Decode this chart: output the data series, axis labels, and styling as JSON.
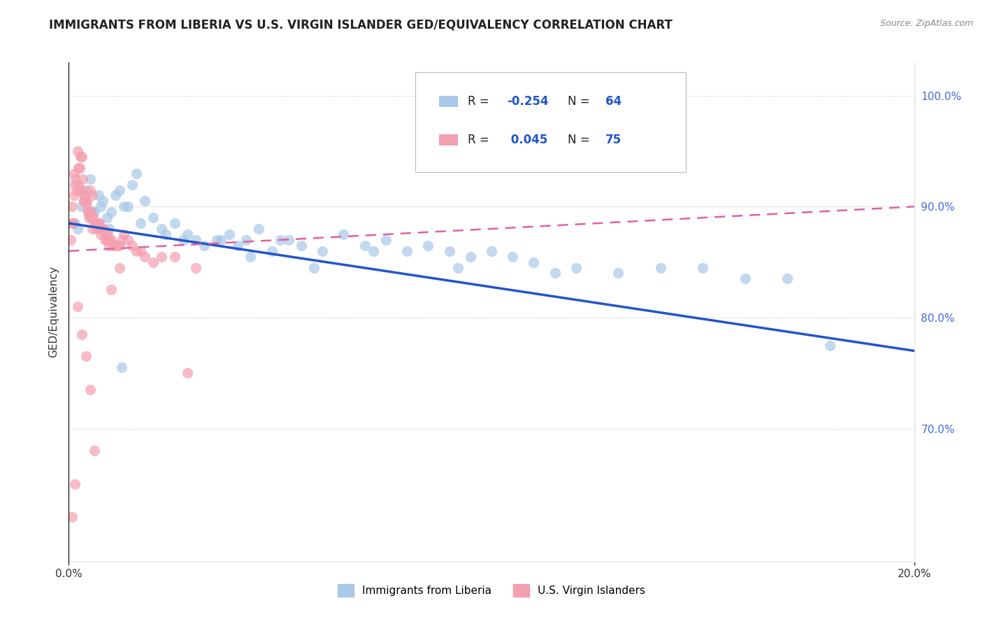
{
  "title": "IMMIGRANTS FROM LIBERIA VS U.S. VIRGIN ISLANDER GED/EQUIVALENCY CORRELATION CHART",
  "source": "Source: ZipAtlas.com",
  "ylabel": "GED/Equivalency",
  "xlim": [
    0.0,
    20.0
  ],
  "ylim": [
    58.0,
    103.0
  ],
  "yticks": [
    70.0,
    80.0,
    90.0,
    100.0
  ],
  "ytick_labels": [
    "70.0%",
    "80.0%",
    "90.0%",
    "100.0%"
  ],
  "color_blue": "#a8c8e8",
  "color_pink": "#f4a0b0",
  "trendline_blue": "#2255cc",
  "trendline_pink": "#e060a0",
  "background_color": "#ffffff",
  "blue_trend_x0": 0.0,
  "blue_trend_y0": 88.5,
  "blue_trend_x1": 20.0,
  "blue_trend_y1": 77.0,
  "pink_trend_x0": 0.0,
  "pink_trend_y0": 86.0,
  "pink_trend_x1": 20.0,
  "pink_trend_y1": 90.0,
  "blue_x": [
    0.2,
    0.4,
    0.5,
    0.7,
    0.8,
    1.0,
    1.2,
    1.4,
    1.5,
    1.6,
    1.8,
    2.0,
    2.2,
    2.5,
    2.8,
    3.0,
    3.5,
    3.8,
    4.0,
    4.2,
    4.5,
    4.8,
    5.0,
    5.2,
    5.5,
    6.0,
    6.5,
    7.0,
    7.5,
    8.0,
    8.5,
    9.0,
    9.5,
    10.0,
    10.5,
    11.0,
    12.0,
    13.0,
    14.0,
    15.0,
    16.0,
    17.0,
    18.0,
    0.3,
    0.6,
    0.9,
    1.1,
    1.3,
    1.7,
    2.3,
    2.7,
    3.2,
    3.6,
    4.3,
    5.8,
    7.2,
    9.2,
    11.5,
    0.15,
    0.35,
    0.55,
    0.75,
    0.95,
    1.25
  ],
  "blue_y": [
    88.0,
    91.5,
    92.5,
    91.0,
    90.5,
    89.5,
    91.5,
    90.0,
    92.0,
    93.0,
    90.5,
    89.0,
    88.0,
    88.5,
    87.5,
    87.0,
    87.0,
    87.5,
    86.5,
    87.0,
    88.0,
    86.0,
    87.0,
    87.0,
    86.5,
    86.0,
    87.5,
    86.5,
    87.0,
    86.0,
    86.5,
    86.0,
    85.5,
    86.0,
    85.5,
    85.0,
    84.5,
    84.0,
    84.5,
    84.5,
    83.5,
    83.5,
    77.5,
    90.0,
    89.5,
    89.0,
    91.0,
    90.0,
    88.5,
    87.5,
    87.0,
    86.5,
    87.0,
    85.5,
    84.5,
    86.0,
    84.5,
    84.0,
    88.5,
    90.5,
    89.5,
    90.0,
    88.0,
    75.5
  ],
  "pink_x": [
    0.05,
    0.07,
    0.1,
    0.12,
    0.15,
    0.18,
    0.2,
    0.22,
    0.25,
    0.28,
    0.3,
    0.33,
    0.35,
    0.38,
    0.4,
    0.42,
    0.45,
    0.48,
    0.5,
    0.52,
    0.55,
    0.58,
    0.6,
    0.65,
    0.7,
    0.75,
    0.8,
    0.85,
    0.9,
    0.95,
    1.0,
    1.1,
    1.2,
    1.3,
    1.4,
    1.5,
    1.7,
    2.0,
    2.5,
    0.08,
    0.13,
    0.23,
    0.32,
    0.43,
    0.53,
    0.62,
    0.72,
    0.82,
    0.92,
    1.05,
    1.15,
    1.25,
    0.16,
    0.26,
    0.36,
    0.46,
    0.56,
    0.66,
    0.76,
    0.86,
    0.96,
    1.6,
    2.2,
    1.0,
    0.3,
    0.4,
    0.5,
    1.8,
    3.0,
    1.2,
    0.2,
    2.8,
    0.6,
    0.15,
    0.08
  ],
  "pink_y": [
    87.0,
    90.0,
    88.5,
    93.0,
    92.0,
    91.5,
    95.0,
    93.5,
    93.5,
    94.5,
    94.5,
    92.5,
    90.5,
    91.0,
    90.5,
    90.0,
    89.5,
    89.0,
    91.5,
    89.5,
    91.0,
    89.0,
    88.5,
    88.0,
    88.5,
    88.0,
    88.0,
    87.5,
    87.0,
    87.0,
    87.0,
    86.5,
    86.5,
    87.5,
    87.0,
    86.5,
    86.0,
    85.0,
    85.5,
    88.5,
    91.0,
    92.0,
    91.5,
    90.5,
    89.0,
    88.5,
    88.5,
    88.0,
    87.5,
    86.5,
    86.5,
    87.0,
    92.5,
    91.5,
    90.5,
    89.5,
    88.0,
    88.5,
    87.5,
    87.0,
    86.5,
    86.0,
    85.5,
    82.5,
    78.5,
    76.5,
    73.5,
    85.5,
    84.5,
    84.5,
    81.0,
    75.0,
    68.0,
    65.0,
    62.0
  ]
}
